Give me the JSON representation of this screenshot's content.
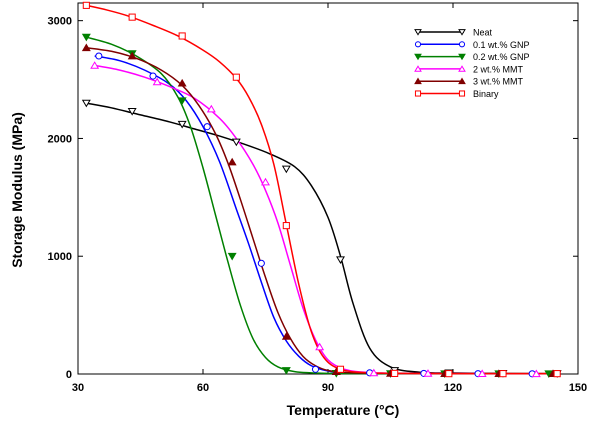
{
  "chart_data": {
    "type": "line",
    "title": "",
    "xlabel": "Temperature (°C)",
    "ylabel": "Storage Modulus (MPa)",
    "xlim": [
      30,
      150
    ],
    "ylim": [
      0,
      3150
    ],
    "xticks": [
      30,
      60,
      90,
      120,
      150
    ],
    "yticks": [
      0,
      1000,
      2000,
      3000
    ],
    "grid": false,
    "legend_position": "top-right",
    "series": [
      {
        "name": "Neat",
        "color": "#000000",
        "marker": "triangle-down-open",
        "x": [
          32,
          38,
          45,
          52,
          58,
          64,
          70,
          76,
          82,
          86,
          90,
          93,
          96,
          100,
          105,
          112,
          120,
          130,
          140,
          145
        ],
        "y": [
          2300,
          2260,
          2200,
          2140,
          2080,
          2020,
          1950,
          1870,
          1760,
          1600,
          1330,
          1000,
          600,
          220,
          60,
          15,
          8,
          5,
          3,
          3
        ],
        "markers_x": [
          32,
          43,
          55,
          68,
          80,
          93,
          106,
          119,
          132,
          145
        ],
        "markers_y": [
          2300,
          2230,
          2120,
          1970,
          1740,
          970,
          30,
          10,
          5,
          3
        ]
      },
      {
        "name": "0.1 wt.% GNP",
        "color": "#0000ff",
        "marker": "circle-open",
        "x": [
          34,
          40,
          46,
          52,
          56,
          60,
          64,
          68,
          71,
          74,
          77,
          80,
          83,
          86,
          90,
          95,
          105,
          120,
          140,
          145
        ],
        "y": [
          2700,
          2660,
          2580,
          2460,
          2320,
          2100,
          1800,
          1400,
          1100,
          780,
          480,
          280,
          150,
          70,
          25,
          10,
          5,
          3,
          2,
          2
        ],
        "markers_x": [
          35,
          48,
          61,
          74,
          87,
          100,
          113,
          126,
          139
        ],
        "markers_y": [
          2700,
          2530,
          2100,
          940,
          40,
          10,
          5,
          3,
          2
        ]
      },
      {
        "name": "0.2 wt.% GNP",
        "color": "#008000",
        "marker": "triangle-down-filled",
        "x": [
          32,
          38,
          44,
          50,
          54,
          57,
          60,
          63,
          66,
          69,
          72,
          75,
          78,
          82,
          86,
          92,
          100,
          120,
          140,
          145
        ],
        "y": [
          2860,
          2800,
          2700,
          2550,
          2350,
          2100,
          1750,
          1350,
          950,
          580,
          300,
          140,
          60,
          20,
          10,
          5,
          3,
          2,
          2,
          2
        ],
        "markers_x": [
          32,
          43,
          55,
          67,
          80,
          92,
          105,
          118,
          131,
          143
        ],
        "markers_y": [
          2860,
          2720,
          2320,
          1000,
          30,
          5,
          3,
          2,
          2,
          2
        ]
      },
      {
        "name": "2 wt.% MMT",
        "color": "#ff00ff",
        "marker": "triangle-up-open",
        "x": [
          34,
          40,
          46,
          52,
          58,
          64,
          68,
          72,
          75,
          78,
          81,
          84,
          87,
          90,
          94,
          100,
          110,
          125,
          140,
          145
        ],
        "y": [
          2620,
          2580,
          2520,
          2440,
          2340,
          2170,
          2000,
          1780,
          1560,
          1280,
          920,
          560,
          290,
          120,
          40,
          12,
          5,
          3,
          2,
          2
        ],
        "markers_x": [
          34,
          49,
          62,
          75,
          88,
          101,
          114,
          127,
          140
        ],
        "markers_y": [
          2620,
          2480,
          2250,
          1630,
          230,
          10,
          5,
          3,
          2
        ]
      },
      {
        "name": "3 wt.% MMT",
        "color": "#800000",
        "marker": "triangle-up-filled",
        "x": [
          32,
          38,
          44,
          50,
          55,
          59,
          63,
          66,
          69,
          72,
          75,
          78,
          81,
          84,
          87,
          90,
          95,
          105,
          130,
          145
        ],
        "y": [
          2770,
          2740,
          2680,
          2580,
          2450,
          2280,
          2040,
          1790,
          1480,
          1150,
          820,
          520,
          300,
          150,
          70,
          30,
          12,
          5,
          3,
          3
        ],
        "markers_x": [
          32,
          43,
          55,
          67,
          80,
          92,
          105,
          118,
          131,
          144
        ],
        "markers_y": [
          2770,
          2700,
          2470,
          1800,
          320,
          20,
          5,
          3,
          3,
          3
        ]
      },
      {
        "name": "Binary",
        "color": "#ff0000",
        "marker": "square-open",
        "x": [
          32,
          37,
          42,
          48,
          54,
          60,
          64,
          68,
          71,
          74,
          77,
          80,
          83,
          86,
          89,
          93,
          100,
          115,
          135,
          145
        ],
        "y": [
          3130,
          3090,
          3040,
          2960,
          2870,
          2750,
          2650,
          2510,
          2350,
          2120,
          1780,
          1270,
          760,
          360,
          140,
          40,
          10,
          4,
          3,
          3
        ],
        "markers_x": [
          32,
          43,
          55,
          68,
          80,
          93,
          106,
          119,
          132,
          145
        ],
        "markers_y": [
          3130,
          3030,
          2870,
          2520,
          1260,
          40,
          5,
          3,
          3,
          3
        ]
      }
    ]
  }
}
